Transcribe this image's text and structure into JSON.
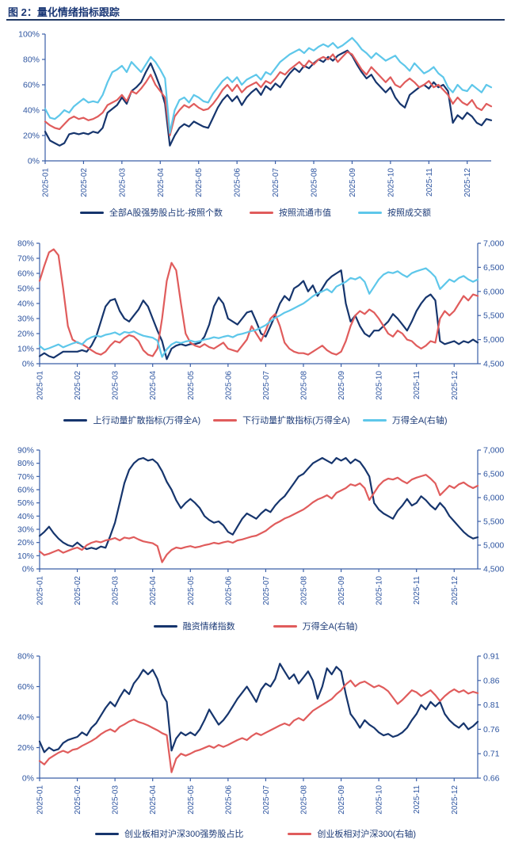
{
  "page": {
    "title": "图 2：量化情绪指标跟踪"
  },
  "colors": {
    "navy": "#16356d",
    "red": "#e05c5c",
    "lightblue": "#5ec7ea",
    "axis": "#3a5fa8",
    "tick_label": "#2e55a0",
    "legend_text": "#1e3c78",
    "title": "#1b3876"
  },
  "months": [
    "2025-01",
    "2025-02",
    "2025-03",
    "2025-04",
    "2025-05",
    "2025-06",
    "2025-07",
    "2025-08",
    "2025-09",
    "2025-10",
    "2025-11",
    "2025-12"
  ],
  "chart_data": [
    {
      "type": "line",
      "left_axis": {
        "min": 0,
        "max": 100,
        "ticks": [
          "100%",
          "80%",
          "60%",
          "40%",
          "20%",
          "0%"
        ]
      },
      "right_axis": null,
      "x_tick_source": "months",
      "series": [
        {
          "name": "全部A股强势股占比-按照个数",
          "color": "#16356d",
          "axis": "left",
          "values": [
            23,
            16,
            14,
            12,
            14,
            21,
            22,
            21,
            22,
            21,
            23,
            22,
            26,
            38,
            41,
            44,
            50,
            45,
            55,
            58,
            62,
            70,
            77,
            68,
            58,
            45,
            12,
            20,
            26,
            29,
            27,
            31,
            29,
            27,
            26,
            34,
            42,
            48,
            52,
            47,
            51,
            44,
            50,
            54,
            57,
            52,
            59,
            56,
            61,
            58,
            64,
            69,
            73,
            70,
            75,
            73,
            77,
            80,
            78,
            82,
            79,
            83,
            85,
            87,
            83,
            76,
            70,
            65,
            68,
            62,
            58,
            54,
            58,
            50,
            45,
            42,
            52,
            55,
            58,
            60,
            57,
            62,
            58,
            60,
            55,
            30,
            36,
            33,
            38,
            35,
            30,
            28,
            33,
            32
          ]
        },
        {
          "name": "按照流通市值",
          "color": "#e05c5c",
          "axis": "left",
          "values": [
            31,
            28,
            26,
            25,
            29,
            33,
            35,
            33,
            34,
            32,
            33,
            35,
            38,
            44,
            46,
            48,
            52,
            47,
            55,
            53,
            57,
            62,
            68,
            60,
            55,
            50,
            20,
            35,
            40,
            44,
            42,
            45,
            42,
            40,
            41,
            45,
            50,
            56,
            60,
            55,
            60,
            54,
            58,
            60,
            62,
            58,
            63,
            61,
            65,
            70,
            68,
            72,
            75,
            78,
            74,
            79,
            76,
            80,
            82,
            80,
            84,
            78,
            82,
            86,
            84,
            78,
            72,
            68,
            74,
            70,
            66,
            62,
            66,
            60,
            58,
            62,
            65,
            62,
            58,
            60,
            63,
            58,
            60,
            56,
            52,
            45,
            50,
            46,
            44,
            48,
            42,
            40,
            45,
            43
          ]
        },
        {
          "name": "按照成交额",
          "color": "#5ec7ea",
          "axis": "left",
          "values": [
            41,
            34,
            33,
            36,
            40,
            38,
            43,
            46,
            49,
            46,
            47,
            46,
            52,
            62,
            70,
            72,
            75,
            70,
            78,
            74,
            70,
            76,
            82,
            78,
            72,
            65,
            22,
            40,
            48,
            50,
            46,
            52,
            50,
            47,
            46,
            53,
            58,
            63,
            66,
            62,
            66,
            60,
            64,
            66,
            68,
            64,
            70,
            68,
            73,
            78,
            81,
            84,
            86,
            88,
            85,
            89,
            87,
            90,
            92,
            90,
            93,
            89,
            91,
            94,
            97,
            93,
            88,
            85,
            81,
            85,
            82,
            79,
            81,
            83,
            78,
            75,
            71,
            77,
            73,
            69,
            71,
            74,
            69,
            66,
            58,
            54,
            60,
            56,
            55,
            60,
            57,
            54,
            60,
            58
          ]
        }
      ]
    },
    {
      "type": "line",
      "left_axis": {
        "min": 0,
        "max": 80,
        "ticks": [
          "80%",
          "70%",
          "60%",
          "50%",
          "40%",
          "30%",
          "20%",
          "10%",
          "0%"
        ]
      },
      "right_axis": {
        "min": 4500,
        "max": 7000,
        "ticks": [
          "7,000",
          "6,500",
          "6,000",
          "5,500",
          "5,000",
          "4,500"
        ]
      },
      "x_tick_source": "months",
      "series": [
        {
          "name": "上行动量扩散指标(万得全A)",
          "color": "#16356d",
          "axis": "left",
          "values": [
            5,
            7,
            5,
            4,
            6,
            8,
            8,
            8,
            8,
            9,
            8,
            12,
            18,
            28,
            38,
            42,
            43,
            35,
            30,
            28,
            32,
            36,
            42,
            38,
            30,
            22,
            15,
            3,
            10,
            12,
            13,
            12,
            13,
            13,
            14,
            18,
            26,
            38,
            44,
            40,
            30,
            28,
            26,
            30,
            34,
            35,
            28,
            20,
            18,
            25,
            32,
            40,
            45,
            42,
            50,
            52,
            55,
            48,
            52,
            45,
            50,
            55,
            58,
            60,
            62,
            40,
            28,
            32,
            25,
            20,
            18,
            22,
            22,
            25,
            28,
            33,
            30,
            26,
            22,
            28,
            35,
            40,
            44,
            46,
            42,
            15,
            13,
            14,
            15,
            13,
            15,
            14,
            16,
            14
          ]
        },
        {
          "name": "下行动量扩散指标(万得全A)",
          "color": "#e05c5c",
          "axis": "left",
          "values": [
            55,
            65,
            74,
            76,
            72,
            50,
            25,
            16,
            14,
            13,
            11,
            9,
            7,
            6,
            8,
            12,
            15,
            14,
            17,
            19,
            18,
            15,
            9,
            6,
            5,
            10,
            30,
            55,
            67,
            62,
            40,
            20,
            14,
            12,
            11,
            13,
            11,
            10,
            12,
            14,
            10,
            9,
            8,
            12,
            16,
            25,
            20,
            15,
            22,
            30,
            33,
            25,
            14,
            10,
            8,
            7,
            7,
            6,
            8,
            10,
            12,
            9,
            7,
            6,
            8,
            15,
            25,
            32,
            35,
            33,
            36,
            34,
            30,
            25,
            20,
            18,
            22,
            20,
            16,
            15,
            12,
            10,
            12,
            15,
            14,
            30,
            35,
            32,
            35,
            40,
            45,
            42,
            46,
            45
          ]
        },
        {
          "name": "万得全A(右轴)",
          "color": "#5ec7ea",
          "axis": "right",
          "values": [
            4870,
            4790,
            4820,
            4860,
            4900,
            4840,
            4880,
            4920,
            4950,
            4900,
            5000,
            5050,
            5080,
            5060,
            5100,
            5120,
            5150,
            5100,
            5160,
            5140,
            5170,
            5120,
            5080,
            5060,
            5040,
            4980,
            4640,
            4800,
            4900,
            4950,
            4930,
            4960,
            4980,
            4950,
            4970,
            5000,
            5020,
            5050,
            5030,
            5060,
            5080,
            5050,
            5100,
            5120,
            5150,
            5180,
            5200,
            5250,
            5300,
            5380,
            5450,
            5500,
            5560,
            5600,
            5650,
            5700,
            5750,
            5820,
            5900,
            5960,
            6000,
            6050,
            5980,
            6100,
            6150,
            6200,
            6280,
            6250,
            6300,
            6200,
            5950,
            6100,
            6250,
            6350,
            6400,
            6380,
            6420,
            6350,
            6300,
            6380,
            6420,
            6450,
            6480,
            6400,
            6300,
            6050,
            6150,
            6250,
            6200,
            6280,
            6320,
            6250,
            6200,
            6250
          ]
        }
      ]
    },
    {
      "type": "line",
      "left_axis": {
        "min": 0,
        "max": 90,
        "ticks": [
          "90%",
          "80%",
          "70%",
          "60%",
          "50%",
          "40%",
          "30%",
          "20%",
          "10%",
          "0%"
        ]
      },
      "right_axis": {
        "min": 4500,
        "max": 7000,
        "ticks": [
          "7,000",
          "6,500",
          "6,000",
          "5,500",
          "5,000",
          "4,500"
        ]
      },
      "x_tick_source": "months",
      "series": [
        {
          "name": "融资情绪指数",
          "color": "#16356d",
          "axis": "left",
          "values": [
            25,
            28,
            32,
            27,
            23,
            20,
            18,
            17,
            20,
            17,
            15,
            16,
            15,
            17,
            16,
            25,
            35,
            50,
            65,
            75,
            80,
            83,
            84,
            82,
            83,
            80,
            74,
            66,
            60,
            52,
            46,
            50,
            53,
            50,
            46,
            40,
            37,
            35,
            36,
            33,
            28,
            26,
            32,
            38,
            42,
            40,
            38,
            42,
            45,
            43,
            48,
            52,
            55,
            60,
            65,
            70,
            72,
            76,
            80,
            82,
            84,
            82,
            80,
            84,
            82,
            84,
            80,
            83,
            81,
            76,
            70,
            50,
            45,
            42,
            40,
            38,
            44,
            48,
            53,
            48,
            50,
            55,
            52,
            48,
            45,
            50,
            46,
            40,
            36,
            32,
            28,
            25,
            23,
            24
          ]
        },
        {
          "name": "万得全A(右轴)",
          "color": "#e05c5c",
          "axis": "right",
          "values": [
            4870,
            4790,
            4820,
            4860,
            4900,
            4840,
            4880,
            4920,
            4950,
            4900,
            5000,
            5050,
            5080,
            5060,
            5100,
            5120,
            5150,
            5100,
            5160,
            5140,
            5170,
            5120,
            5080,
            5060,
            5040,
            4980,
            4640,
            4800,
            4900,
            4950,
            4930,
            4960,
            4980,
            4950,
            4970,
            5000,
            5020,
            5050,
            5030,
            5060,
            5080,
            5050,
            5100,
            5120,
            5150,
            5180,
            5200,
            5250,
            5300,
            5380,
            5450,
            5500,
            5560,
            5600,
            5650,
            5700,
            5750,
            5820,
            5900,
            5960,
            6000,
            6050,
            5980,
            6100,
            6150,
            6200,
            6280,
            6250,
            6300,
            6200,
            5950,
            6100,
            6250,
            6350,
            6400,
            6380,
            6420,
            6350,
            6300,
            6380,
            6420,
            6450,
            6480,
            6400,
            6300,
            6050,
            6150,
            6250,
            6200,
            6280,
            6320,
            6250,
            6200,
            6250
          ]
        }
      ]
    },
    {
      "type": "line",
      "left_axis": {
        "min": 0,
        "max": 80,
        "ticks": [
          "80%",
          "60%",
          "40%",
          "20%",
          "0%"
        ]
      },
      "right_axis": {
        "min": 0.66,
        "max": 0.91,
        "ticks": [
          "0.91",
          "0.86",
          "0.81",
          "0.76",
          "0.71",
          "0.66"
        ]
      },
      "x_tick_source": "months",
      "series": [
        {
          "name": "创业板相对沪深300强势股占比",
          "color": "#16356d",
          "axis": "left",
          "values": [
            24,
            17,
            20,
            18,
            19,
            23,
            25,
            26,
            27,
            30,
            28,
            33,
            36,
            41,
            46,
            50,
            47,
            53,
            58,
            55,
            62,
            66,
            71,
            68,
            71,
            65,
            55,
            50,
            18,
            26,
            30,
            28,
            30,
            28,
            32,
            38,
            45,
            40,
            35,
            38,
            42,
            47,
            52,
            56,
            60,
            55,
            50,
            58,
            62,
            60,
            65,
            75,
            70,
            65,
            68,
            62,
            66,
            70,
            64,
            52,
            60,
            72,
            68,
            73,
            70,
            55,
            42,
            38,
            33,
            38,
            35,
            33,
            30,
            28,
            29,
            27,
            28,
            30,
            33,
            38,
            42,
            48,
            45,
            50,
            47,
            50,
            42,
            38,
            35,
            33,
            36,
            32,
            34,
            37
          ]
        },
        {
          "name": "创业板相对沪深300(右轴)",
          "color": "#e05c5c",
          "axis": "right",
          "values": [
            0.695,
            0.688,
            0.7,
            0.706,
            0.712,
            0.716,
            0.712,
            0.718,
            0.72,
            0.726,
            0.731,
            0.736,
            0.742,
            0.75,
            0.756,
            0.76,
            0.755,
            0.765,
            0.77,
            0.776,
            0.78,
            0.775,
            0.772,
            0.768,
            0.763,
            0.758,
            0.752,
            0.748,
            0.672,
            0.7,
            0.71,
            0.706,
            0.71,
            0.715,
            0.718,
            0.722,
            0.726,
            0.722,
            0.728,
            0.724,
            0.728,
            0.733,
            0.738,
            0.742,
            0.738,
            0.746,
            0.752,
            0.748,
            0.753,
            0.758,
            0.763,
            0.768,
            0.772,
            0.768,
            0.778,
            0.783,
            0.778,
            0.788,
            0.798,
            0.804,
            0.81,
            0.816,
            0.822,
            0.832,
            0.84,
            0.852,
            0.86,
            0.848,
            0.855,
            0.858,
            0.852,
            0.846,
            0.85,
            0.845,
            0.838,
            0.825,
            0.812,
            0.82,
            0.83,
            0.84,
            0.836,
            0.828,
            0.834,
            0.84,
            0.83,
            0.818,
            0.828,
            0.836,
            0.842,
            0.836,
            0.84,
            0.833,
            0.837,
            0.834
          ]
        }
      ]
    }
  ]
}
